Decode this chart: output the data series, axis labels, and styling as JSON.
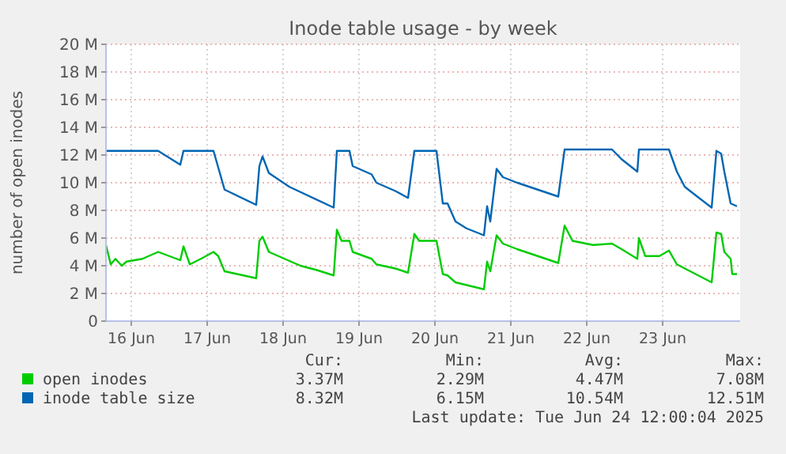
{
  "chart_data": {
    "type": "line",
    "title": "Inode table usage - by week",
    "ylabel": "number of open inodes",
    "xlim": [
      "2025-06-16T04:00",
      "2025-06-24T12:30"
    ],
    "xticks": [
      {
        "value": "2025-06-16T12:00",
        "label": "16 Jun"
      },
      {
        "value": "2025-06-17T12:00",
        "label": "17 Jun"
      },
      {
        "value": "2025-06-18T12:00",
        "label": "18 Jun"
      },
      {
        "value": "2025-06-19T12:00",
        "label": "19 Jun"
      },
      {
        "value": "2025-06-20T12:00",
        "label": "20 Jun"
      },
      {
        "value": "2025-06-21T12:00",
        "label": "21 Jun"
      },
      {
        "value": "2025-06-22T12:00",
        "label": "22 Jun"
      },
      {
        "value": "2025-06-23T12:00",
        "label": "23 Jun"
      }
    ],
    "ylim": [
      0,
      20
    ],
    "yticks": [
      {
        "value": 0,
        "label": "0"
      },
      {
        "value": 2,
        "label": "2 M"
      },
      {
        "value": 4,
        "label": "4 M"
      },
      {
        "value": 6,
        "label": "6 M"
      },
      {
        "value": 8,
        "label": "8 M"
      },
      {
        "value": 10,
        "label": "10 M"
      },
      {
        "value": 12,
        "label": "12 M"
      },
      {
        "value": 14,
        "label": "14 M"
      },
      {
        "value": 16,
        "label": "16 M"
      },
      {
        "value": 18,
        "label": "18 M"
      },
      {
        "value": 20,
        "label": "20 M"
      }
    ],
    "grid": true,
    "legend": "bottom",
    "marker": "none",
    "line_style": "solid",
    "series": [
      {
        "name": "open inodes",
        "color": "#00cc00",
        "x": [
          "2025-06-16T04:00",
          "2025-06-16T05:30",
          "2025-06-16T07:00",
          "2025-06-16T09:00",
          "2025-06-16T10:30",
          "2025-06-16T15:30",
          "2025-06-16T20:30",
          "2025-06-17T03:30",
          "2025-06-17T04:30",
          "2025-06-17T06:30",
          "2025-06-17T10:00",
          "2025-06-17T14:00",
          "2025-06-17T15:30",
          "2025-06-17T17:30",
          "2025-06-18T03:30",
          "2025-06-18T04:30",
          "2025-06-18T05:30",
          "2025-06-18T07:30",
          "2025-06-18T17:30",
          "2025-06-18T22:30",
          "2025-06-19T04:00",
          "2025-06-19T05:00",
          "2025-06-19T06:30",
          "2025-06-19T09:00",
          "2025-06-19T10:00",
          "2025-06-19T16:00",
          "2025-06-19T17:30",
          "2025-06-19T23:30",
          "2025-06-20T03:30",
          "2025-06-20T05:30",
          "2025-06-20T07:00",
          "2025-06-20T12:30",
          "2025-06-20T14:30",
          "2025-06-20T16:00",
          "2025-06-20T18:30",
          "2025-06-21T03:30",
          "2025-06-21T04:30",
          "2025-06-21T05:30",
          "2025-06-21T07:30",
          "2025-06-21T09:30",
          "2025-06-21T14:00",
          "2025-06-22T03:00",
          "2025-06-22T05:00",
          "2025-06-22T07:30",
          "2025-06-22T14:00",
          "2025-06-22T20:00",
          "2025-06-22T23:00",
          "2025-06-23T04:00",
          "2025-06-23T04:30",
          "2025-06-23T06:30",
          "2025-06-23T11:00",
          "2025-06-23T14:00",
          "2025-06-23T16:30",
          "2025-06-24T03:30",
          "2025-06-24T05:00",
          "2025-06-24T06:30",
          "2025-06-24T07:30",
          "2025-06-24T09:30",
          "2025-06-24T10:00",
          "2025-06-24T11:30"
        ],
        "values": [
          5.5,
          4.1,
          4.5,
          4.0,
          4.3,
          4.5,
          5.0,
          4.4,
          5.4,
          4.1,
          4.5,
          5.0,
          4.7,
          3.6,
          3.1,
          5.8,
          6.1,
          5.0,
          4.0,
          3.7,
          3.3,
          6.6,
          5.8,
          5.8,
          5.0,
          4.5,
          4.1,
          3.8,
          3.5,
          6.3,
          5.8,
          5.8,
          3.4,
          3.3,
          2.8,
          2.3,
          4.3,
          3.6,
          6.2,
          5.6,
          5.2,
          4.2,
          6.9,
          5.8,
          5.5,
          5.6,
          5.2,
          4.5,
          6.0,
          4.7,
          4.7,
          5.1,
          4.1,
          2.8,
          6.4,
          6.3,
          5.0,
          4.5,
          3.4,
          3.4
        ]
      },
      {
        "name": "inode table size",
        "color": "#0066b3",
        "x": [
          "2025-06-16T04:00",
          "2025-06-16T20:30",
          "2025-06-17T03:30",
          "2025-06-17T04:30",
          "2025-06-17T14:00",
          "2025-06-17T17:30",
          "2025-06-18T03:30",
          "2025-06-18T04:30",
          "2025-06-18T05:30",
          "2025-06-18T07:30",
          "2025-06-18T14:00",
          "2025-06-19T04:00",
          "2025-06-19T05:00",
          "2025-06-19T09:00",
          "2025-06-19T10:00",
          "2025-06-19T16:00",
          "2025-06-19T17:30",
          "2025-06-19T23:30",
          "2025-06-20T03:30",
          "2025-06-20T05:30",
          "2025-06-20T12:30",
          "2025-06-20T14:30",
          "2025-06-20T16:00",
          "2025-06-20T18:30",
          "2025-06-20T22:00",
          "2025-06-21T03:30",
          "2025-06-21T04:30",
          "2025-06-21T05:30",
          "2025-06-21T07:30",
          "2025-06-21T09:30",
          "2025-06-21T14:00",
          "2025-06-22T03:00",
          "2025-06-22T05:00",
          "2025-06-22T20:00",
          "2025-06-22T23:00",
          "2025-06-23T04:00",
          "2025-06-23T04:30",
          "2025-06-23T14:00",
          "2025-06-23T16:30",
          "2025-06-23T19:00",
          "2025-06-23T23:30",
          "2025-06-24T03:30",
          "2025-06-24T05:00",
          "2025-06-24T06:30",
          "2025-06-24T07:30",
          "2025-06-24T09:30",
          "2025-06-24T11:30"
        ],
        "values": [
          12.3,
          12.3,
          11.3,
          12.3,
          12.3,
          9.5,
          8.4,
          11.2,
          11.9,
          10.7,
          9.7,
          8.2,
          12.3,
          12.3,
          11.2,
          10.6,
          10.0,
          9.4,
          8.9,
          12.3,
          12.3,
          8.5,
          8.5,
          7.2,
          6.7,
          6.2,
          8.3,
          7.2,
          11.0,
          10.4,
          10.0,
          9.0,
          12.4,
          12.4,
          11.7,
          10.8,
          12.4,
          12.4,
          10.8,
          9.7,
          8.9,
          8.2,
          12.3,
          12.1,
          10.8,
          8.5,
          8.3
        ]
      }
    ],
    "annotations": [
      "Cur:",
      "Min:",
      "Avg:",
      "Max:",
      "3.37M",
      "2.29M",
      "4.47M",
      "7.08M",
      "8.32M",
      "6.15M",
      "10.54M",
      "12.51M",
      "Last update: Tue Jun 24 12:00:04 2025"
    ]
  }
}
